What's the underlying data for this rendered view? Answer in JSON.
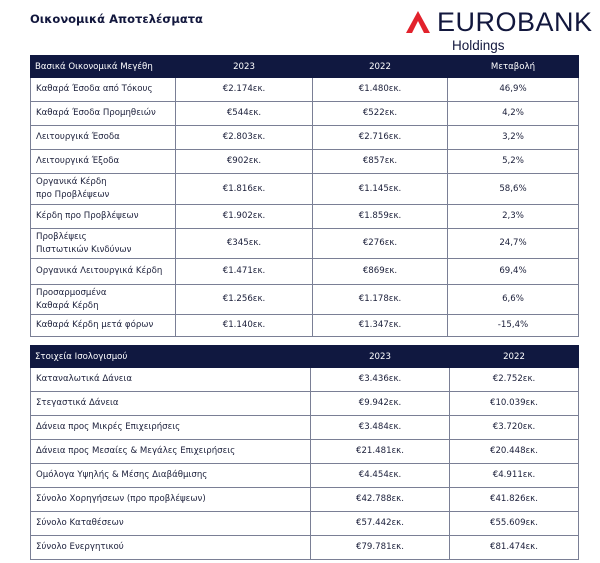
{
  "title": "Οικονομικά Αποτελέσματα",
  "logo": {
    "brand": "EUROBANK",
    "sub": "Holdings",
    "color": "#e2222c"
  },
  "colors": {
    "header_bg": "#101840"
  },
  "financials": {
    "headers": [
      "Βασικά Οικονομικά Μεγέθη",
      "2023",
      "2022",
      "Μεταβολή"
    ],
    "rows": [
      {
        "label": [
          "Καθαρά Έσοδα από Τόκους"
        ],
        "y2023": "€2.174εκ.",
        "y2022": "€1.480εκ.",
        "change": "46,9%"
      },
      {
        "label": [
          "Καθαρά Έσοδα Προμηθειών"
        ],
        "y2023": "€544εκ.",
        "y2022": "€522εκ.",
        "change": "4,2%"
      },
      {
        "label": [
          "Λειτουργικά Έσοδα"
        ],
        "y2023": "€2.803εκ.",
        "y2022": "€2.716εκ.",
        "change": "3,2%"
      },
      {
        "label": [
          "Λειτουργικά Έξοδα"
        ],
        "y2023": "€902εκ.",
        "y2022": "€857εκ.",
        "change": "5,2%"
      },
      {
        "label": [
          "Οργανικά Κέρδη",
          "προ Προβλέψεων"
        ],
        "y2023": "€1.816εκ.",
        "y2022": "€1.145εκ.",
        "change": "58,6%"
      },
      {
        "label": [
          "Κέρδη προ Προβλέψεων"
        ],
        "y2023": "€1.902εκ.",
        "y2022": "€1.859εκ.",
        "change": "2,3%"
      },
      {
        "label": [
          "Προβλέψεις",
          "Πιστωτικών Κινδύνων"
        ],
        "y2023": "€345εκ.",
        "y2022": "€276εκ.",
        "change": "24,7%"
      },
      {
        "label": [
          "Οργανικά Λειτουργικά Κέρδη"
        ],
        "y2023": "€1.471εκ.",
        "y2022": "€869εκ.",
        "change": "69,4%"
      },
      {
        "label": [
          "Προσαρμοσμένα",
          "Καθαρά Κέρδη"
        ],
        "y2023": "€1.256εκ.",
        "y2022": "€1.178εκ.",
        "change": "6,6%"
      },
      {
        "label": [
          "Καθαρά Κέρδη μετά φόρων"
        ],
        "y2023": "€1.140εκ.",
        "y2022": "€1.347εκ.",
        "change": "-15,4%"
      }
    ]
  },
  "balance": {
    "headers": [
      "Στοιχεία Ισολογισμού",
      "2023",
      "2022"
    ],
    "rows": [
      {
        "label": "Καταναλωτικά Δάνεια",
        "y2023": "€3.436εκ.",
        "y2022": "€2.752εκ."
      },
      {
        "label": "Στεγαστικά Δάνεια",
        "y2023": "€9.942εκ.",
        "y2022": "€10.039εκ."
      },
      {
        "label": "Δάνεια προς Μικρές Επιχειρήσεις",
        "y2023": "€3.484εκ.",
        "y2022": "€3.720εκ."
      },
      {
        "label": "Δάνεια προς Μεσαίες & Μεγάλες Επιχειρήσεις",
        "y2023": "€21.481εκ.",
        "y2022": "€20.448εκ."
      },
      {
        "label": "Ομόλογα Υψηλής & Μέσης Διαβάθμισης",
        "y2023": "€4.454εκ.",
        "y2022": "€4.911εκ."
      },
      {
        "label": "Σύνολο Χορηγήσεων (προ προβλέψεων)",
        "y2023": "€42.788εκ.",
        "y2022": "€41.826εκ."
      },
      {
        "label": "Σύνολο Καταθέσεων",
        "y2023": "€57.442εκ.",
        "y2022": "€55.609εκ."
      },
      {
        "label": "Σύνολο Ενεργητικού",
        "y2023": "€79.781εκ.",
        "y2022": "€81.474εκ."
      }
    ]
  }
}
